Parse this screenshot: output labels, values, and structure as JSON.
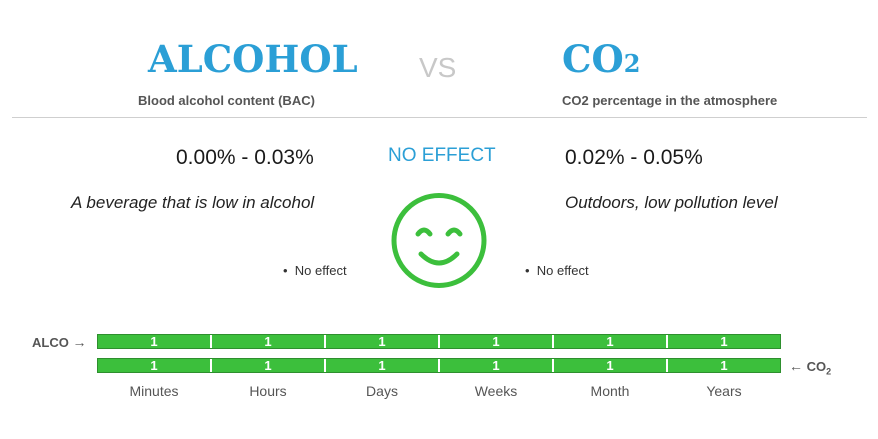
{
  "left": {
    "title": "ALCOHOL",
    "subtitle": "Blood alcohol content (BAC)",
    "range": "0.00% - 0.03%",
    "description": "A beverage that is low in alcohol",
    "bullet": "No effect"
  },
  "vs_label": "VS",
  "right": {
    "title_main": "CO",
    "title_sub": "2",
    "subtitle": "CO2 percentage in the atmosphere",
    "range": "0.02% - 0.05%",
    "description": "Outdoors, low pollution level",
    "bullet": "No effect"
  },
  "center": {
    "effect": "NO EFFECT",
    "face_icon": "smiley-face-icon",
    "accent_color": "#3cbf3c"
  },
  "timeline": {
    "alco_label": "ALCO",
    "co2_label_main": "CO",
    "co2_label_sub": "2",
    "alco_values": [
      "1",
      "1",
      "1",
      "1",
      "1",
      "1"
    ],
    "co2_values": [
      "1",
      "1",
      "1",
      "1",
      "1",
      "1"
    ],
    "periods": [
      "Minutes",
      "Hours",
      "Days",
      "Weeks",
      "Month",
      "Years"
    ],
    "bar_color": "#3cbf3c"
  },
  "colors": {
    "title_blue": "#2b9fd6",
    "vs_gray": "#c8c8c8"
  }
}
